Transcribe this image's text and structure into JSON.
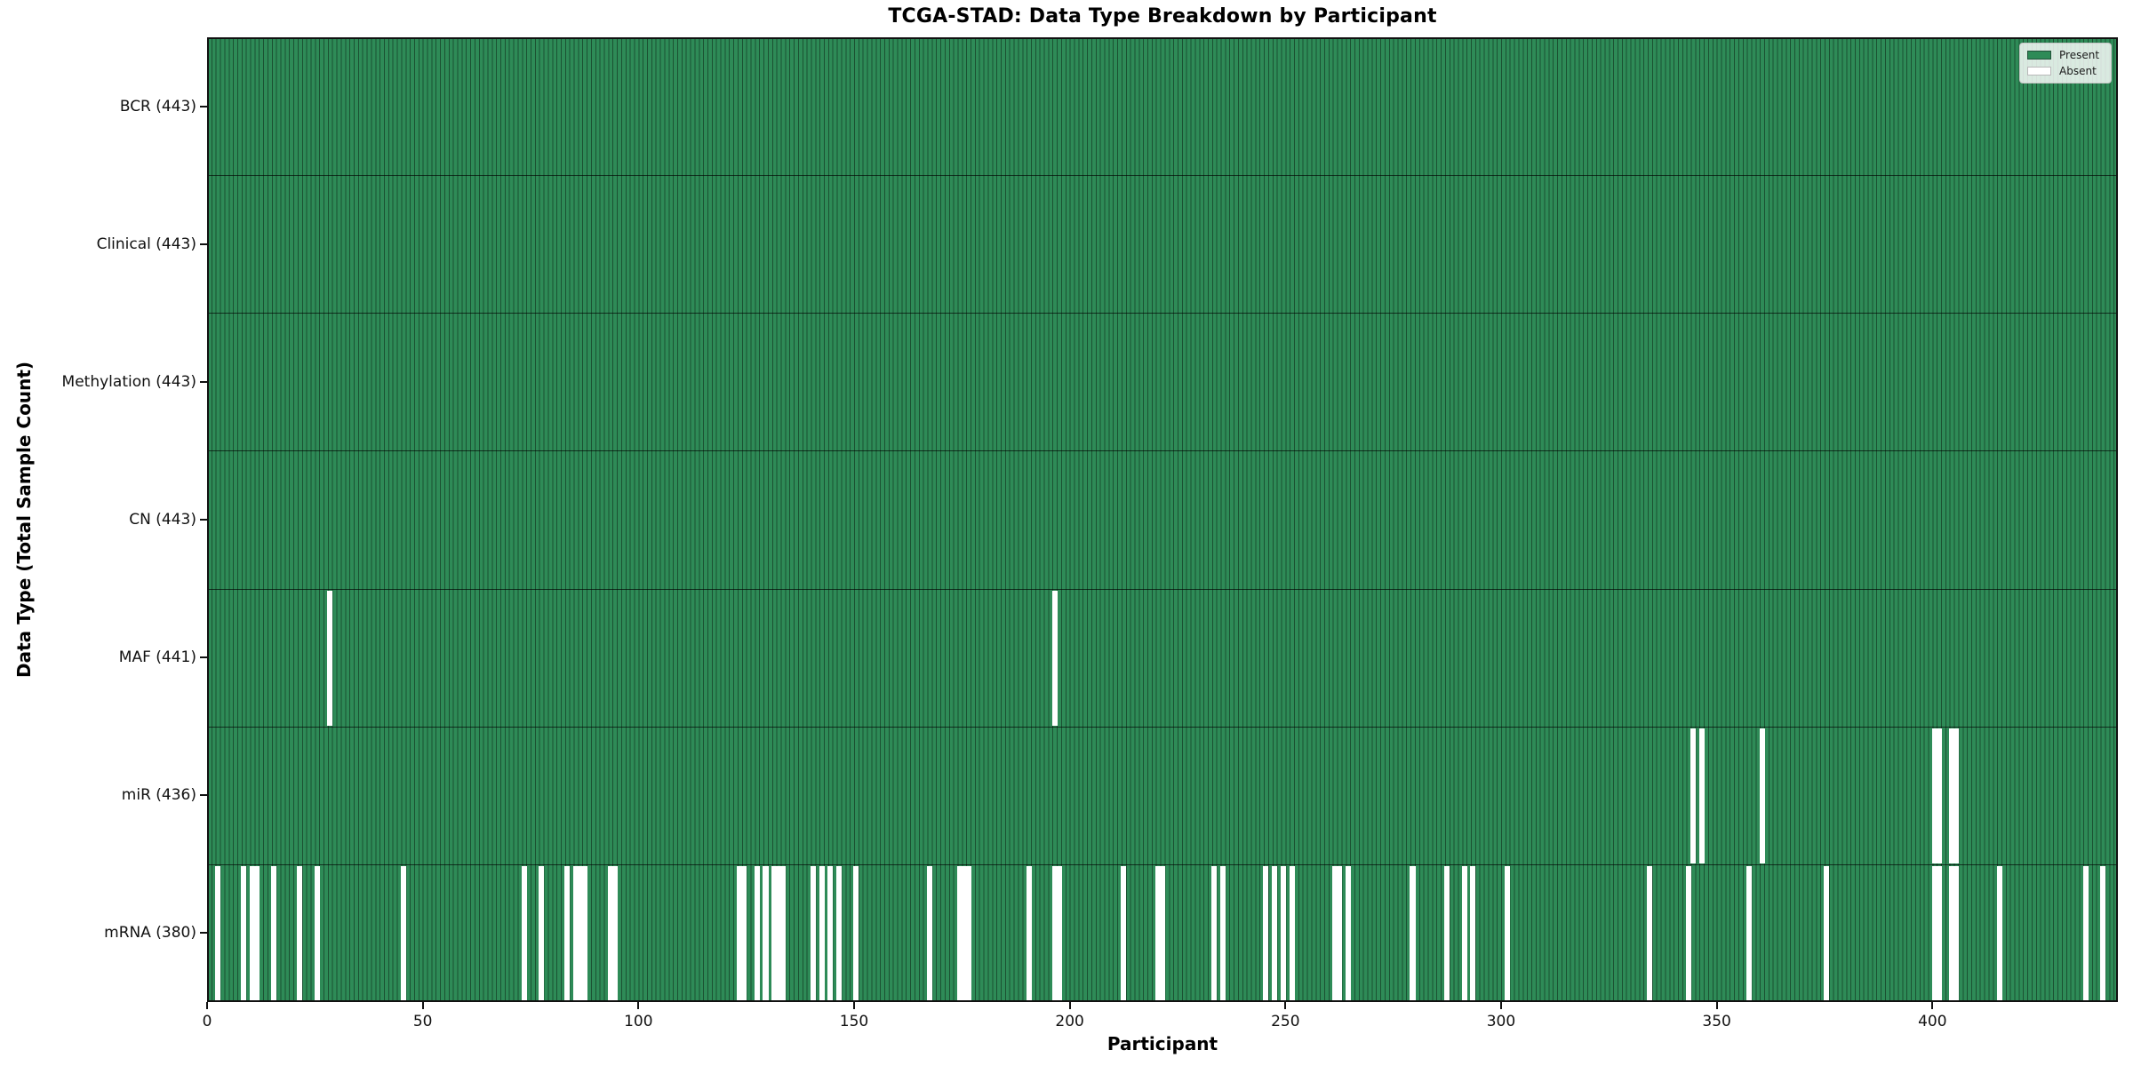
{
  "chart_data": {
    "type": "heatmap",
    "title": "TCGA-STAD: Data Type Breakdown by Participant",
    "xlabel": "Participant",
    "ylabel": "Data Type (Total Sample Count)",
    "n_participants": 443,
    "x_ticks": [
      0,
      50,
      100,
      150,
      200,
      250,
      300,
      350,
      400
    ],
    "present_color": "#2e8b57",
    "absent_color": "#ffffff",
    "grid": false,
    "legend_position": "upper right",
    "legend": [
      {
        "label": "Present",
        "color": "#2e8b57"
      },
      {
        "label": "Absent",
        "color": "#ffffff"
      }
    ],
    "rows": [
      {
        "label": "BCR (443)",
        "data_type": "BCR",
        "present_count": 443,
        "absent_participants": []
      },
      {
        "label": "Clinical (443)",
        "data_type": "Clinical",
        "present_count": 443,
        "absent_participants": []
      },
      {
        "label": "Methylation (443)",
        "data_type": "Methylation",
        "present_count": 443,
        "absent_participants": []
      },
      {
        "label": "CN (443)",
        "data_type": "CN",
        "present_count": 443,
        "absent_participants": []
      },
      {
        "label": "MAF (441)",
        "data_type": "MAF",
        "present_count": 441,
        "absent_participants": [
          28,
          196
        ]
      },
      {
        "label": "miR (436)",
        "data_type": "miR",
        "present_count": 436,
        "absent_participants": [
          344,
          346,
          360,
          400,
          401,
          404,
          405
        ]
      },
      {
        "label": "mRNA (380)",
        "data_type": "mRNA",
        "present_count": 380,
        "absent_participants": [
          2,
          8,
          10,
          11,
          15,
          21,
          25,
          45,
          73,
          77,
          83,
          85,
          86,
          87,
          93,
          94,
          123,
          124,
          127,
          129,
          131,
          132,
          133,
          140,
          142,
          144,
          146,
          150,
          167,
          174,
          175,
          176,
          190,
          196,
          197,
          212,
          220,
          221,
          233,
          235,
          245,
          247,
          249,
          251,
          261,
          262,
          264,
          279,
          287,
          291,
          293,
          301,
          334,
          343,
          357,
          375,
          400,
          401,
          404,
          405,
          415,
          435,
          439
        ]
      }
    ]
  }
}
